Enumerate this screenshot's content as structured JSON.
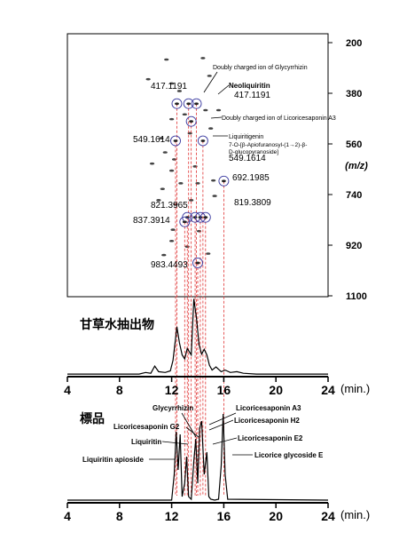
{
  "chart_data": [
    {
      "type": "scatter",
      "ylabel": "(m/z)",
      "yticks": [
        200,
        380,
        560,
        740,
        920,
        1100
      ],
      "ylim": [
        200,
        1100
      ],
      "xlim": [
        4,
        24
      ],
      "annotations": {
        "mass_labels": [
          {
            "text": "417.1191",
            "x": 12.4,
            "y": 415
          },
          {
            "text": "417.1191",
            "x": 14.3,
            "y": 415
          },
          {
            "text": "549.1614",
            "x": 12.3,
            "y": 547
          },
          {
            "text": "549.1614",
            "x": 14.3,
            "y": 560
          },
          {
            "text": "692.1985",
            "x": 16.0,
            "y": 690
          },
          {
            "text": "819.3809",
            "x": 14.8,
            "y": 818
          },
          {
            "text": "821.3965",
            "x": 13.2,
            "y": 820
          },
          {
            "text": "837.3914",
            "x": 13.2,
            "y": 836
          },
          {
            "text": "983.4493",
            "x": 13.9,
            "y": 983
          }
        ],
        "compound_labels": [
          {
            "text": "Doubly charged ion of Glycyrrhizin"
          },
          {
            "text": "Neoliquiritin"
          },
          {
            "text": "Doubly charged ion of Licoricesaponin A3"
          },
          {
            "text": "Liquiritigenin"
          },
          {
            "text": "7-O-[β-Apiofuranosyl-(1→2)-β-"
          },
          {
            "text": "D-glucopyranoside]"
          }
        ]
      },
      "circled_points": [
        {
          "x": 12.4,
          "y": 417
        },
        {
          "x": 13.3,
          "y": 417
        },
        {
          "x": 13.9,
          "y": 417
        },
        {
          "x": 13.5,
          "y": 480
        },
        {
          "x": 12.3,
          "y": 549
        },
        {
          "x": 14.4,
          "y": 549
        },
        {
          "x": 16.0,
          "y": 692
        },
        {
          "x": 13.2,
          "y": 821
        },
        {
          "x": 13.8,
          "y": 821
        },
        {
          "x": 14.2,
          "y": 821
        },
        {
          "x": 14.6,
          "y": 821
        },
        {
          "x": 13.0,
          "y": 837
        },
        {
          "x": 14.0,
          "y": 983
        }
      ],
      "spots": [
        {
          "x": 11.6,
          "y": 260
        },
        {
          "x": 14.4,
          "y": 255
        },
        {
          "x": 10.2,
          "y": 330
        },
        {
          "x": 12.0,
          "y": 345
        },
        {
          "x": 14.9,
          "y": 318
        },
        {
          "x": 12.6,
          "y": 372
        },
        {
          "x": 13.0,
          "y": 455
        },
        {
          "x": 14.6,
          "y": 440
        },
        {
          "x": 15.6,
          "y": 440
        },
        {
          "x": 12.0,
          "y": 472
        },
        {
          "x": 13.4,
          "y": 522
        },
        {
          "x": 15.0,
          "y": 505
        },
        {
          "x": 11.2,
          "y": 540
        },
        {
          "x": 11.5,
          "y": 590
        },
        {
          "x": 12.2,
          "y": 615
        },
        {
          "x": 10.5,
          "y": 630
        },
        {
          "x": 12.0,
          "y": 655
        },
        {
          "x": 13.8,
          "y": 640
        },
        {
          "x": 12.7,
          "y": 700
        },
        {
          "x": 14.0,
          "y": 700
        },
        {
          "x": 15.2,
          "y": 690
        },
        {
          "x": 11.3,
          "y": 720
        },
        {
          "x": 13.5,
          "y": 760
        },
        {
          "x": 15.3,
          "y": 745
        },
        {
          "x": 11.0,
          "y": 760
        },
        {
          "x": 12.3,
          "y": 775
        },
        {
          "x": 12.1,
          "y": 865
        },
        {
          "x": 14.1,
          "y": 870
        },
        {
          "x": 12.0,
          "y": 905
        },
        {
          "x": 13.2,
          "y": 925
        },
        {
          "x": 11.4,
          "y": 955
        },
        {
          "x": 14.8,
          "y": 950
        }
      ]
    },
    {
      "type": "line",
      "title": "甘草水抽出物",
      "xlabel": "(min.)",
      "xticks": [
        4,
        8,
        12,
        16,
        20,
        24
      ],
      "xlim": [
        4,
        24
      ],
      "series": [
        {
          "x": [
            4,
            9.5,
            10.0,
            10.4,
            10.7,
            11.0,
            11.5,
            11.9,
            12.1,
            12.4,
            12.6,
            12.8,
            13.0,
            13.2,
            13.5,
            13.7,
            13.9,
            14.1,
            14.3,
            14.5,
            14.7,
            14.9,
            15.1,
            15.4,
            15.8,
            16.1,
            16.5,
            17.0,
            17.5,
            18.5,
            24
          ],
          "y": [
            0.01,
            0.01,
            0.03,
            0.02,
            0.11,
            0.04,
            0.03,
            0.05,
            0.18,
            0.6,
            0.4,
            0.25,
            0.2,
            0.33,
            0.25,
            0.95,
            0.72,
            0.38,
            0.26,
            0.32,
            0.25,
            0.12,
            0.06,
            0.1,
            0.04,
            0.06,
            0.03,
            0.04,
            0.02,
            0.01,
            0.01
          ]
        }
      ]
    },
    {
      "type": "line",
      "title": "標品",
      "xlabel": "(min.)",
      "xticks": [
        4,
        8,
        12,
        16,
        20,
        24
      ],
      "xlim": [
        4,
        24
      ],
      "series": [
        {
          "x": [
            4,
            12.0,
            12.2,
            12.35,
            12.5,
            12.65,
            12.8,
            13.0,
            13.15,
            13.3,
            13.5,
            13.7,
            13.85,
            14.0,
            14.15,
            14.3,
            14.5,
            14.7,
            14.85,
            15.0,
            15.3,
            15.6,
            15.8,
            15.95,
            16.1,
            16.3,
            24
          ],
          "y": [
            0.01,
            0.01,
            0.3,
            0.78,
            0.35,
            0.75,
            0.05,
            0.2,
            0.5,
            0.05,
            0.02,
            0.45,
            0.7,
            0.2,
            0.82,
            0.9,
            0.3,
            0.55,
            0.05,
            0.02,
            0.01,
            0.02,
            0.4,
            0.98,
            0.3,
            0.02,
            0.01
          ]
        }
      ],
      "annotations": [
        {
          "text": "Glycyrrhizin"
        },
        {
          "text": "Licoricesaponin A3"
        },
        {
          "text": "Licoricesaponin G2"
        },
        {
          "text": "Licoricesaponin H2"
        },
        {
          "text": "Liquiritin"
        },
        {
          "text": "Licoricesaponin E2"
        },
        {
          "text": "Liquiritin apioside"
        },
        {
          "text": "Licorice glycoside E"
        }
      ]
    }
  ]
}
